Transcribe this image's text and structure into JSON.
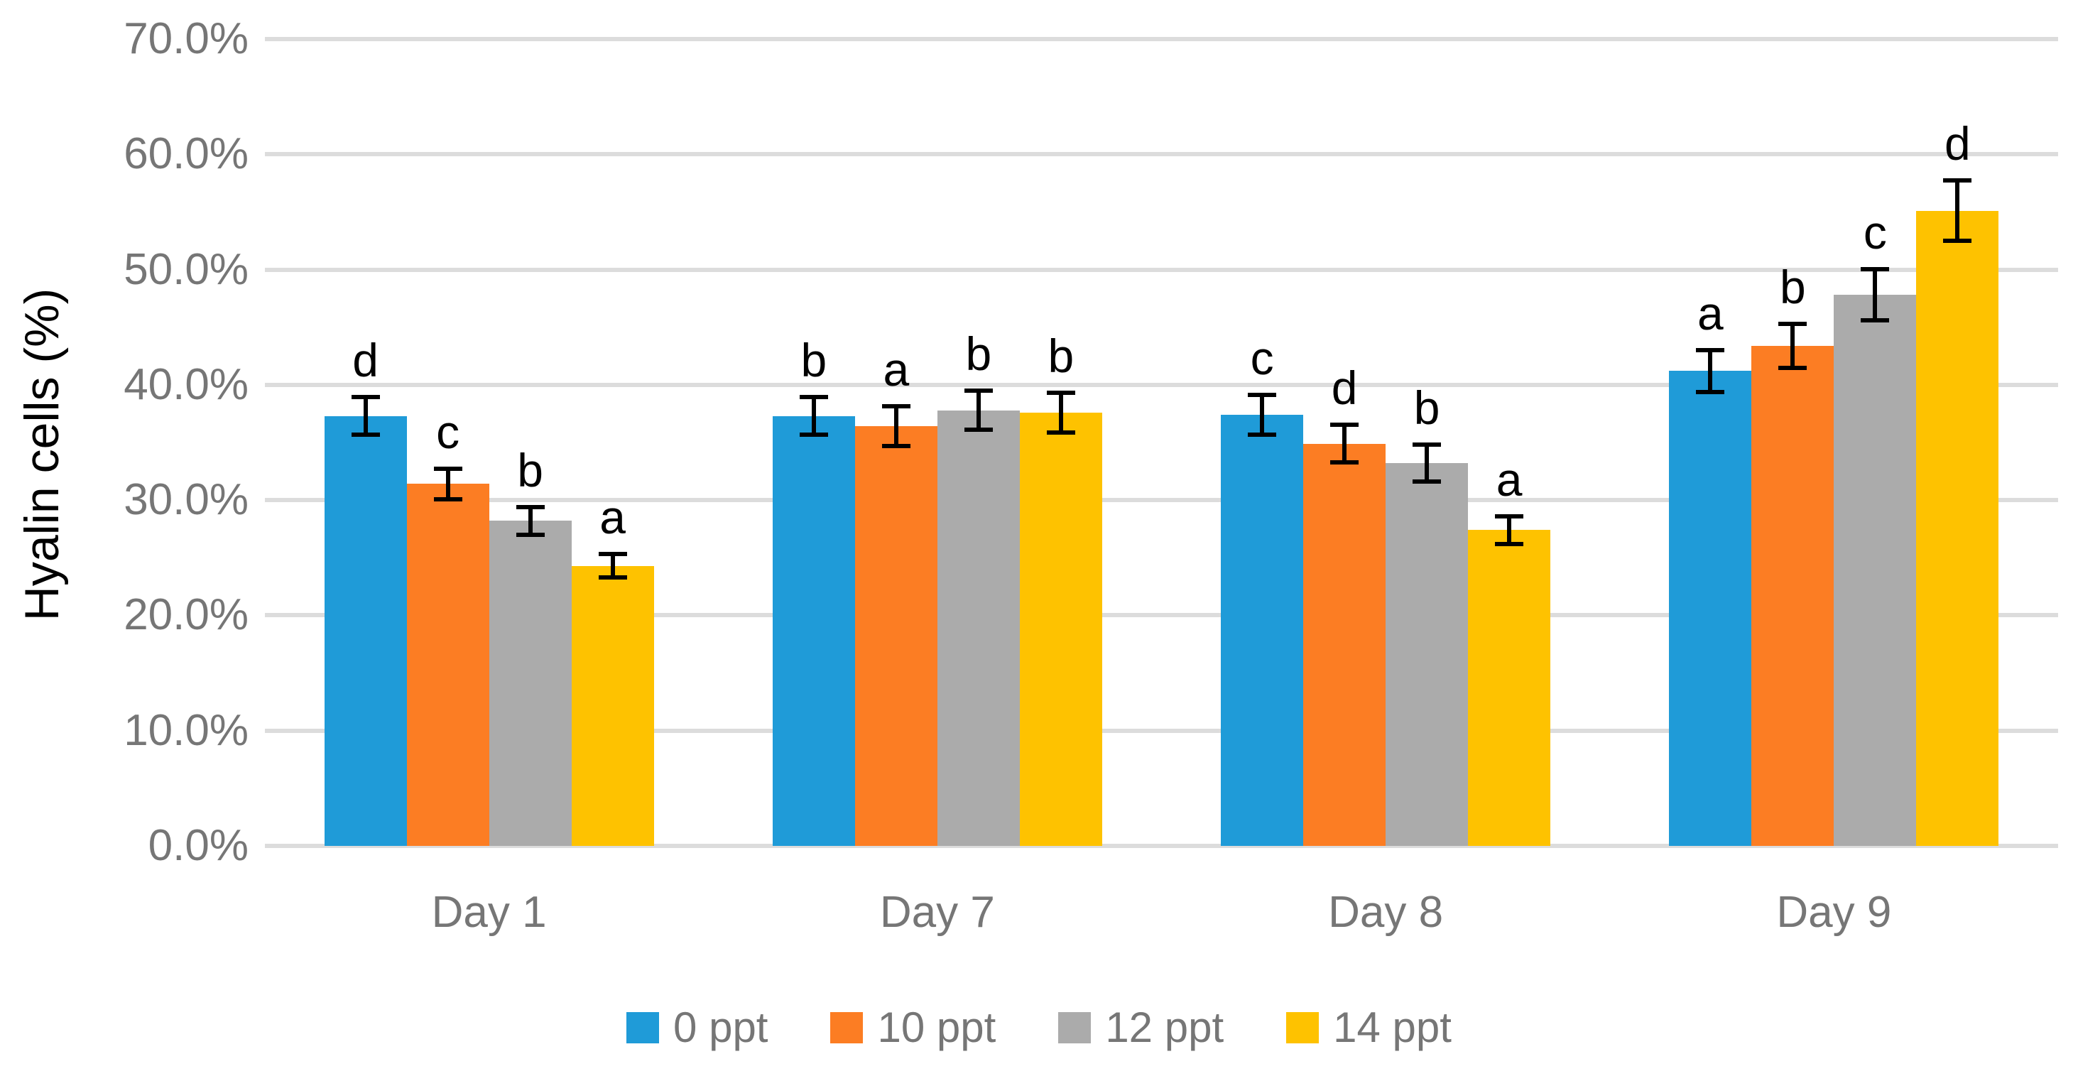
{
  "chart_data": {
    "type": "bar",
    "title": "",
    "xlabel": "",
    "ylabel": "Hyalin cells (%)",
    "ylim": [
      0,
      70
    ],
    "y_tick_step": 10,
    "y_tick_labels": [
      "0.0%",
      "10.0%",
      "20.0%",
      "30.0%",
      "40.0%",
      "50.0%",
      "60.0%",
      "70.0%"
    ],
    "grid": "horizontal",
    "legend_position": "bottom",
    "error_bars": true,
    "categories": [
      "Day 1",
      "Day 7",
      "Day 8",
      "Day 9"
    ],
    "series": [
      {
        "name": "0 ppt",
        "color": "#1f9bd8",
        "values": [
          37.3,
          37.3,
          37.4,
          41.2
        ],
        "errors": [
          1.8,
          1.8,
          1.9,
          2.0
        ],
        "letters": [
          "d",
          "b",
          "c",
          "a"
        ]
      },
      {
        "name": "10 ppt",
        "color": "#fc7d23",
        "values": [
          31.4,
          36.4,
          34.9,
          43.4
        ],
        "errors": [
          1.5,
          1.9,
          1.8,
          2.1
        ],
        "letters": [
          "c",
          "a",
          "d",
          "b"
        ]
      },
      {
        "name": "12 ppt",
        "color": "#ababab",
        "values": [
          28.2,
          37.8,
          33.2,
          47.8
        ],
        "errors": [
          1.4,
          1.9,
          1.8,
          2.4
        ],
        "letters": [
          "b",
          "b",
          "b",
          "c"
        ]
      },
      {
        "name": "14 ppt",
        "color": "#fec200",
        "values": [
          24.3,
          37.6,
          27.4,
          55.1
        ],
        "errors": [
          1.2,
          1.9,
          1.4,
          2.8
        ],
        "letters": [
          "a",
          "b",
          "a",
          "d"
        ]
      }
    ],
    "colors": {
      "gridline": "#dcdcdc",
      "error_bar": "#000000",
      "axis_text": "#767676",
      "letter_text": "#000000",
      "background": "#ffffff"
    }
  }
}
